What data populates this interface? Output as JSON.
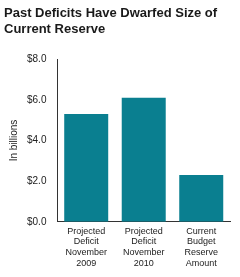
{
  "chart_data": {
    "type": "bar",
    "title": [
      "Past Deficits Have Dwarfed Size of",
      "Current Reserve"
    ],
    "y_label": "In billions",
    "categories": [
      "Projected Deficit November 2009",
      "Projected Deficit November 2010",
      "Current Budget Reserve Amount"
    ],
    "values": [
      5.3,
      6.1,
      2.3
    ],
    "color": "#0a7f90",
    "ylim": [
      0,
      8
    ],
    "yticks": [
      {
        "value": 0,
        "label": "$0.0"
      },
      {
        "value": 2,
        "label": "$2.0"
      },
      {
        "value": 4,
        "label": "$4.0"
      },
      {
        "value": 6,
        "label": "$6.0"
      },
      {
        "value": 8,
        "label": "$8.0"
      }
    ],
    "grid": false
  }
}
